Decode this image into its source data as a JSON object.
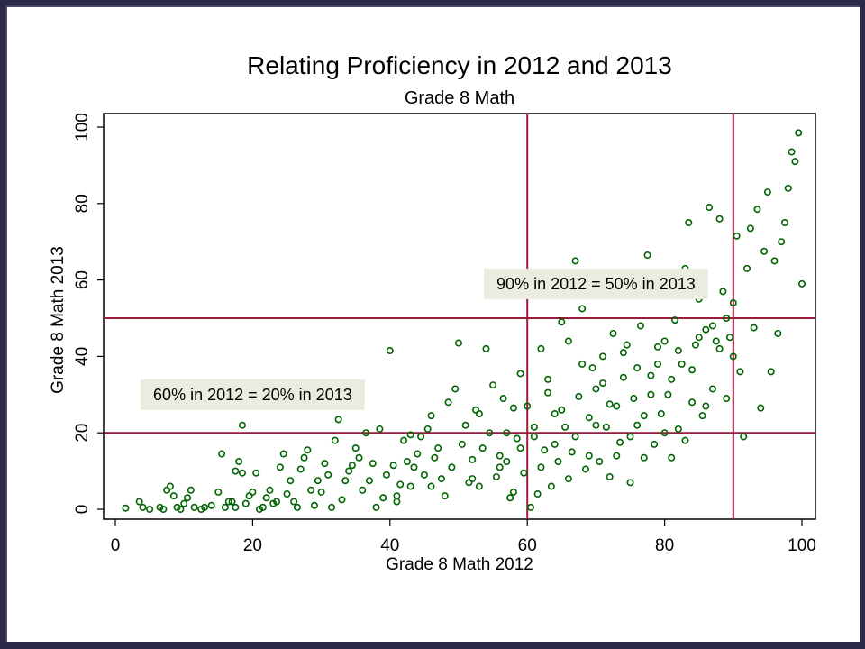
{
  "chart_data": {
    "type": "scatter",
    "title": "Relating Proficiency in 2012 and 2013",
    "subtitle": "Grade 8 Math",
    "xlabel": "Grade 8 Math 2012",
    "ylabel": "Grade 8 Math 2013",
    "xlim": [
      0,
      100
    ],
    "ylim": [
      0,
      100
    ],
    "xticks": [
      "0",
      "20",
      "40",
      "60",
      "80",
      "100"
    ],
    "yticks": [
      "0",
      "20",
      "40",
      "60",
      "80",
      "100"
    ],
    "grid": false,
    "marker_color": "#006400",
    "reference_line_color": "#9b1b3a",
    "reference_lines": {
      "x": [
        60,
        90
      ],
      "y": [
        20,
        50
      ]
    },
    "annotations": [
      {
        "text": "60% in 2012 = 20% in 2013",
        "x": 20,
        "y": 30
      },
      {
        "text": "90% in 2012 = 50% in 2013",
        "x": 70,
        "y": 59
      }
    ],
    "points": [
      [
        1.5,
        0.3
      ],
      [
        3.5,
        2
      ],
      [
        4,
        0.5
      ],
      [
        5,
        0
      ],
      [
        6.5,
        0.5
      ],
      [
        7,
        0
      ],
      [
        7.5,
        5
      ],
      [
        8,
        6
      ],
      [
        8.5,
        3.5
      ],
      [
        9,
        0.5
      ],
      [
        9.5,
        0
      ],
      [
        10,
        1.5
      ],
      [
        10.5,
        3
      ],
      [
        11,
        5
      ],
      [
        11.5,
        0.5
      ],
      [
        12.5,
        0
      ],
      [
        13,
        0.5
      ],
      [
        14,
        1
      ],
      [
        15,
        4.5
      ],
      [
        15.5,
        14.5
      ],
      [
        16,
        0.5
      ],
      [
        16.5,
        2
      ],
      [
        17,
        2
      ],
      [
        17.5,
        10
      ],
      [
        17.5,
        0.5
      ],
      [
        18,
        12.5
      ],
      [
        18.5,
        9.5
      ],
      [
        18.5,
        22
      ],
      [
        19,
        1.5
      ],
      [
        19.5,
        3.5
      ],
      [
        20,
        4.5
      ],
      [
        20.5,
        9.5
      ],
      [
        21,
        0
      ],
      [
        21.5,
        0.5
      ],
      [
        22,
        3
      ],
      [
        22.5,
        5
      ],
      [
        23,
        1.5
      ],
      [
        23.5,
        2
      ],
      [
        24,
        11
      ],
      [
        24.5,
        14.5
      ],
      [
        25,
        4
      ],
      [
        25.5,
        7.5
      ],
      [
        26,
        2
      ],
      [
        26.5,
        0.5
      ],
      [
        27,
        10.5
      ],
      [
        27.5,
        13.5
      ],
      [
        28,
        15.5
      ],
      [
        28.5,
        5
      ],
      [
        29,
        1
      ],
      [
        29.5,
        7.5
      ],
      [
        30,
        4.5
      ],
      [
        30.5,
        12
      ],
      [
        31,
        9
      ],
      [
        31.5,
        0.5
      ],
      [
        32,
        18
      ],
      [
        32.5,
        23.5
      ],
      [
        33,
        2.5
      ],
      [
        33.5,
        7.5
      ],
      [
        34,
        10
      ],
      [
        34.5,
        11.5
      ],
      [
        35,
        16
      ],
      [
        35.5,
        13.5
      ],
      [
        36,
        5
      ],
      [
        36.5,
        20
      ],
      [
        37,
        7.5
      ],
      [
        37.5,
        12
      ],
      [
        38,
        0.5
      ],
      [
        38.5,
        21
      ],
      [
        39,
        3
      ],
      [
        39.5,
        9
      ],
      [
        40,
        41.5
      ],
      [
        40.5,
        11.5
      ],
      [
        41,
        2
      ],
      [
        41.5,
        6.5
      ],
      [
        42,
        18
      ],
      [
        42.5,
        12.5
      ],
      [
        43,
        6
      ],
      [
        43.5,
        11
      ],
      [
        44,
        14.5
      ],
      [
        44.5,
        19
      ],
      [
        45,
        9
      ],
      [
        45.5,
        21
      ],
      [
        46,
        6
      ],
      [
        46.5,
        13.5
      ],
      [
        47,
        16
      ],
      [
        47.5,
        8
      ],
      [
        48,
        3.5
      ],
      [
        48.5,
        28
      ],
      [
        49,
        11
      ],
      [
        49.5,
        31.5
      ],
      [
        50,
        43.5
      ],
      [
        50.5,
        17
      ],
      [
        51,
        22
      ],
      [
        51.5,
        7
      ],
      [
        52,
        13
      ],
      [
        52.5,
        26
      ],
      [
        53,
        6
      ],
      [
        53.5,
        16
      ],
      [
        54,
        42
      ],
      [
        54.5,
        20
      ],
      [
        55,
        32.5
      ],
      [
        55.5,
        8.5
      ],
      [
        56,
        14
      ],
      [
        56.5,
        29
      ],
      [
        57,
        12.5
      ],
      [
        57.5,
        3
      ],
      [
        58,
        26.5
      ],
      [
        58.5,
        18.5
      ],
      [
        59,
        35.5
      ],
      [
        59.5,
        9.5
      ],
      [
        60,
        27
      ],
      [
        60.5,
        0.5
      ],
      [
        61,
        19
      ],
      [
        61.5,
        4
      ],
      [
        62,
        42
      ],
      [
        62.5,
        15.5
      ],
      [
        63,
        34
      ],
      [
        63.5,
        6
      ],
      [
        64,
        25
      ],
      [
        64.5,
        12.5
      ],
      [
        65,
        49
      ],
      [
        65.5,
        21.5
      ],
      [
        66,
        44
      ],
      [
        66.5,
        15
      ],
      [
        67,
        65
      ],
      [
        67.5,
        29.5
      ],
      [
        68,
        52.5
      ],
      [
        68.5,
        10.5
      ],
      [
        69,
        24
      ],
      [
        69.5,
        37
      ],
      [
        70,
        31.5
      ],
      [
        70.5,
        12.5
      ],
      [
        71,
        40
      ],
      [
        71.5,
        21.5
      ],
      [
        72,
        8.5
      ],
      [
        72.5,
        46
      ],
      [
        73,
        27
      ],
      [
        73.5,
        17.5
      ],
      [
        74,
        34.5
      ],
      [
        74.5,
        43
      ],
      [
        75,
        7
      ],
      [
        75.5,
        29
      ],
      [
        76,
        22
      ],
      [
        76.5,
        48
      ],
      [
        77,
        13.5
      ],
      [
        77.5,
        66.5
      ],
      [
        78,
        35
      ],
      [
        78.5,
        17
      ],
      [
        79,
        38
      ],
      [
        79.5,
        25
      ],
      [
        80,
        44
      ],
      [
        80.5,
        30
      ],
      [
        81,
        13.5
      ],
      [
        81.5,
        49.5
      ],
      [
        82,
        21
      ],
      [
        82.5,
        38
      ],
      [
        83,
        63
      ],
      [
        83.5,
        75
      ],
      [
        84,
        28
      ],
      [
        84.5,
        43
      ],
      [
        85,
        55
      ],
      [
        85.5,
        24.5
      ],
      [
        86,
        47
      ],
      [
        86.5,
        79
      ],
      [
        87,
        31.5
      ],
      [
        87.5,
        44
      ],
      [
        88,
        76
      ],
      [
        88.5,
        57
      ],
      [
        89,
        29
      ],
      [
        89.5,
        45
      ],
      [
        90,
        54
      ],
      [
        90.5,
        71.5
      ],
      [
        91,
        36
      ],
      [
        91.5,
        19
      ],
      [
        92,
        63
      ],
      [
        92.5,
        73.5
      ],
      [
        93,
        47.5
      ],
      [
        93.5,
        78.5
      ],
      [
        94,
        26.5
      ],
      [
        94.5,
        67.5
      ],
      [
        95,
        83
      ],
      [
        95.5,
        36
      ],
      [
        96,
        65
      ],
      [
        96.5,
        46
      ],
      [
        97,
        70
      ],
      [
        97.5,
        75
      ],
      [
        98,
        84
      ],
      [
        98.5,
        93.5
      ],
      [
        99,
        91
      ],
      [
        99.5,
        98.5
      ],
      [
        100,
        59
      ],
      [
        41,
        3.5
      ],
      [
        43,
        19.5
      ],
      [
        46,
        24.5
      ],
      [
        52,
        8
      ],
      [
        53,
        25
      ],
      [
        56,
        11
      ],
      [
        57,
        20
      ],
      [
        58,
        4.5
      ],
      [
        59,
        16
      ],
      [
        61,
        21.5
      ],
      [
        62,
        11
      ],
      [
        63,
        30.5
      ],
      [
        64,
        17
      ],
      [
        65,
        26
      ],
      [
        66,
        8
      ],
      [
        67,
        19
      ],
      [
        68,
        38
      ],
      [
        69,
        14
      ],
      [
        70,
        22
      ],
      [
        71,
        33
      ],
      [
        72,
        27.5
      ],
      [
        73,
        14
      ],
      [
        74,
        41
      ],
      [
        75,
        19
      ],
      [
        76,
        37
      ],
      [
        77,
        24.5
      ],
      [
        78,
        30
      ],
      [
        79,
        42.5
      ],
      [
        80,
        20
      ],
      [
        81,
        34
      ],
      [
        82,
        41.5
      ],
      [
        83,
        18
      ],
      [
        84,
        36.5
      ],
      [
        85,
        45
      ],
      [
        86,
        27
      ],
      [
        87,
        48
      ],
      [
        88,
        42
      ],
      [
        89,
        50
      ],
      [
        90,
        40
      ]
    ]
  }
}
